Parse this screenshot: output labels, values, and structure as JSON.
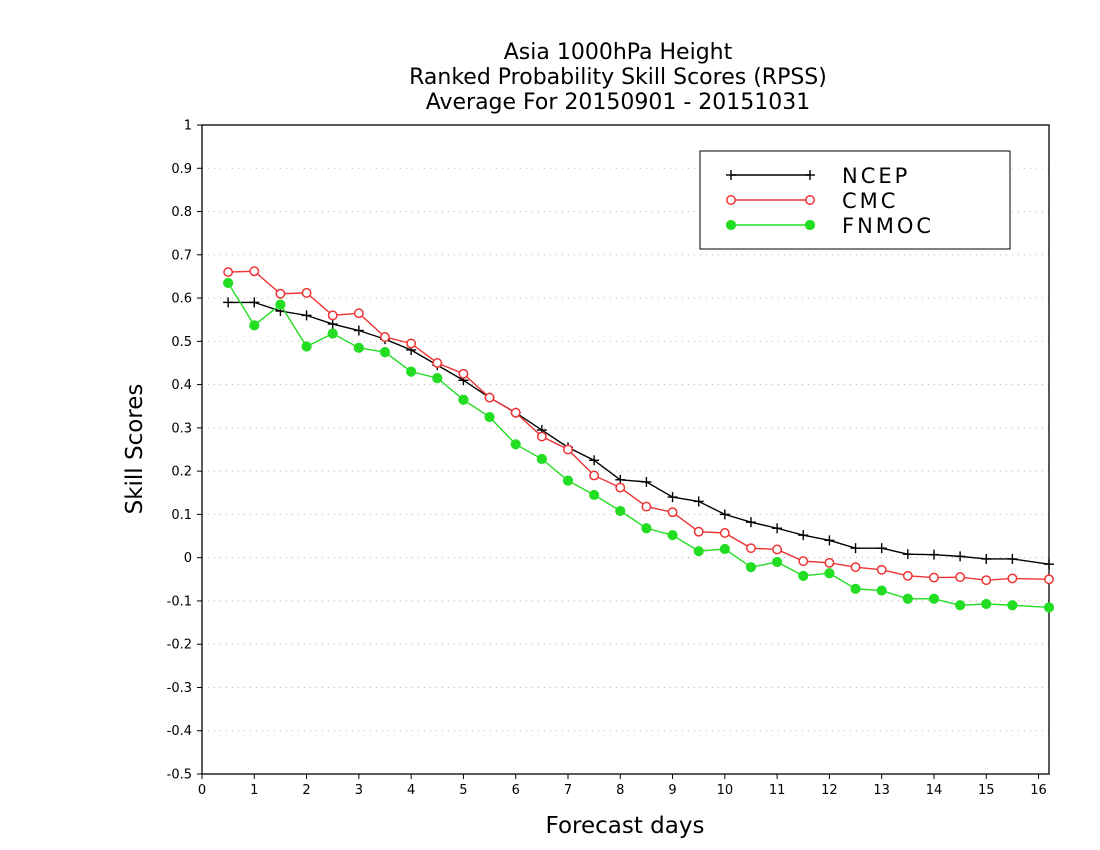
{
  "chart_data": {
    "type": "line",
    "title": [
      "Asia 1000hPa Height",
      "Ranked Probability Skill Scores (RPSS)",
      "Average For 20150901 - 20151031"
    ],
    "xlabel": "Forecast days",
    "ylabel": "Skill Scores",
    "xlim": [
      0,
      16.2
    ],
    "ylim": [
      -0.5,
      1.0
    ],
    "xticks": [
      0,
      1,
      2,
      3,
      4,
      5,
      6,
      7,
      8,
      9,
      10,
      11,
      12,
      13,
      14,
      15,
      16
    ],
    "yticks": [
      1,
      0.9,
      0.8,
      0.7,
      0.6,
      0.5,
      0.4,
      0.3,
      0.2,
      0.1,
      0,
      -0.1,
      -0.2,
      -0.3,
      -0.4,
      -0.5
    ],
    "grid": true,
    "legend_position": "top-right",
    "x": [
      0.5,
      1,
      1.5,
      2,
      2.5,
      3,
      3.5,
      4,
      4.5,
      5,
      5.5,
      6,
      6.5,
      7,
      7.5,
      8,
      8.5,
      9,
      9.5,
      10,
      10.5,
      11,
      11.5,
      12,
      12.5,
      13,
      13.5,
      14,
      14.5,
      15,
      15.5,
      16.2
    ],
    "series": [
      {
        "name": "NCEP",
        "color": "#000000",
        "marker": "plus",
        "values": [
          0.59,
          0.59,
          0.57,
          0.56,
          0.54,
          0.525,
          0.505,
          0.48,
          0.445,
          0.41,
          0.37,
          0.335,
          0.295,
          0.255,
          0.225,
          0.18,
          0.175,
          0.14,
          0.13,
          0.1,
          0.082,
          0.068,
          0.052,
          0.04,
          0.022,
          0.022,
          0.008,
          0.007,
          0.003,
          -0.003,
          -0.003,
          -0.015
        ]
      },
      {
        "name": "CMC",
        "color": "#ee3333",
        "marker": "open-circle",
        "values": [
          0.66,
          0.662,
          0.61,
          0.612,
          0.56,
          0.565,
          0.51,
          0.495,
          0.45,
          0.425,
          0.37,
          0.335,
          0.28,
          0.25,
          0.19,
          0.162,
          0.118,
          0.105,
          0.06,
          0.057,
          0.022,
          0.019,
          -0.008,
          -0.012,
          -0.022,
          -0.028,
          -0.042,
          -0.046,
          -0.045,
          -0.052,
          -0.048,
          -0.05
        ]
      },
      {
        "name": "FNMOC",
        "color": "#22dd22",
        "marker": "filled-circle",
        "values": [
          0.635,
          0.537,
          0.585,
          0.488,
          0.518,
          0.485,
          0.475,
          0.43,
          0.415,
          0.365,
          0.325,
          0.262,
          0.228,
          0.178,
          0.145,
          0.108,
          0.068,
          0.052,
          0.015,
          0.02,
          -0.022,
          -0.01,
          -0.042,
          -0.036,
          -0.072,
          -0.076,
          -0.095,
          -0.095,
          -0.11,
          -0.107,
          -0.11,
          -0.115
        ]
      }
    ]
  }
}
